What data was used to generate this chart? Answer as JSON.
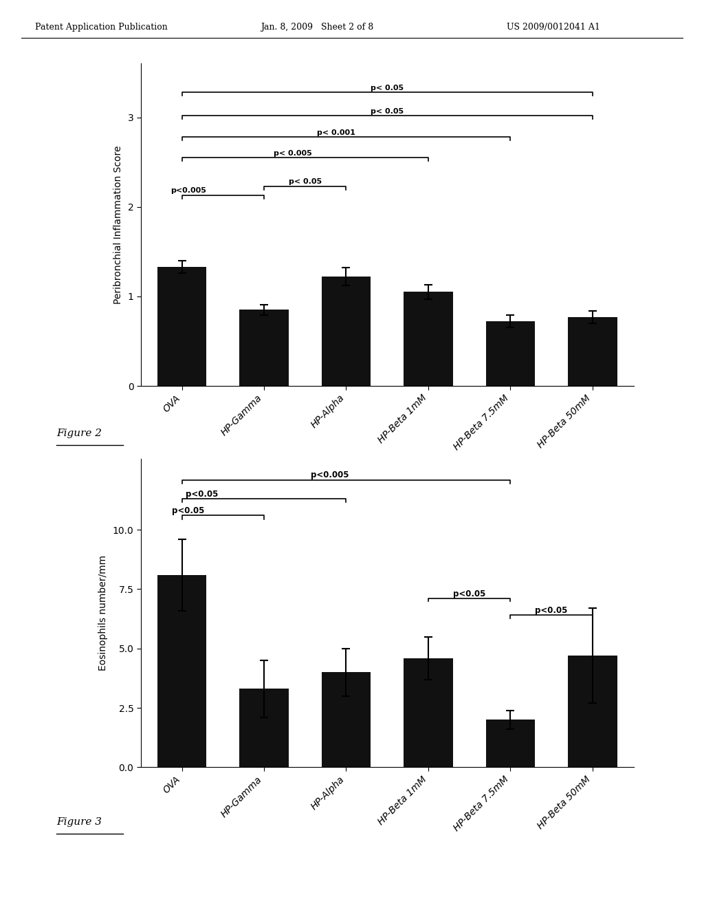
{
  "header_left": "Patent Application Publication",
  "header_mid": "Jan. 8, 2009   Sheet 2 of 8",
  "header_right": "US 2009/0012041 A1",
  "fig1": {
    "categories": [
      "OVA",
      "HP-Gamma",
      "HP-Alpha",
      "HP-Beta 1mM",
      "HP-Beta 7.5mM",
      "HP-Beta 50mM"
    ],
    "values": [
      1.33,
      0.85,
      1.22,
      1.05,
      0.72,
      0.77
    ],
    "errors": [
      0.07,
      0.06,
      0.1,
      0.08,
      0.07,
      0.07
    ],
    "ylabel": "Peribronchial Inflammation Score",
    "ylim": [
      0,
      3.6
    ],
    "yticks": [
      0,
      1,
      2,
      3
    ],
    "bar_color": "#111111"
  },
  "fig2": {
    "categories": [
      "OVA",
      "HP-Gamma",
      "HP-Alpha",
      "HP-Beta 1mM",
      "HP-Beta 7.5mM",
      "HP-Beta 50mM"
    ],
    "values": [
      8.1,
      3.3,
      4.0,
      4.6,
      2.0,
      4.7
    ],
    "errors": [
      1.5,
      1.2,
      1.0,
      0.9,
      0.4,
      2.0
    ],
    "ylabel": "Eosinophils number/mm",
    "ylim": [
      0,
      13
    ],
    "yticks": [
      0.0,
      2.5,
      5.0,
      7.5,
      10.0
    ],
    "ytick_labels": [
      "0.0",
      "2.5",
      "5.0",
      "7.5",
      "10.0"
    ],
    "bar_color": "#111111"
  },
  "figure2_label": "Figure 2",
  "figure3_label": "Figure 3",
  "bg_color": "#ffffff",
  "text_color": "#000000"
}
